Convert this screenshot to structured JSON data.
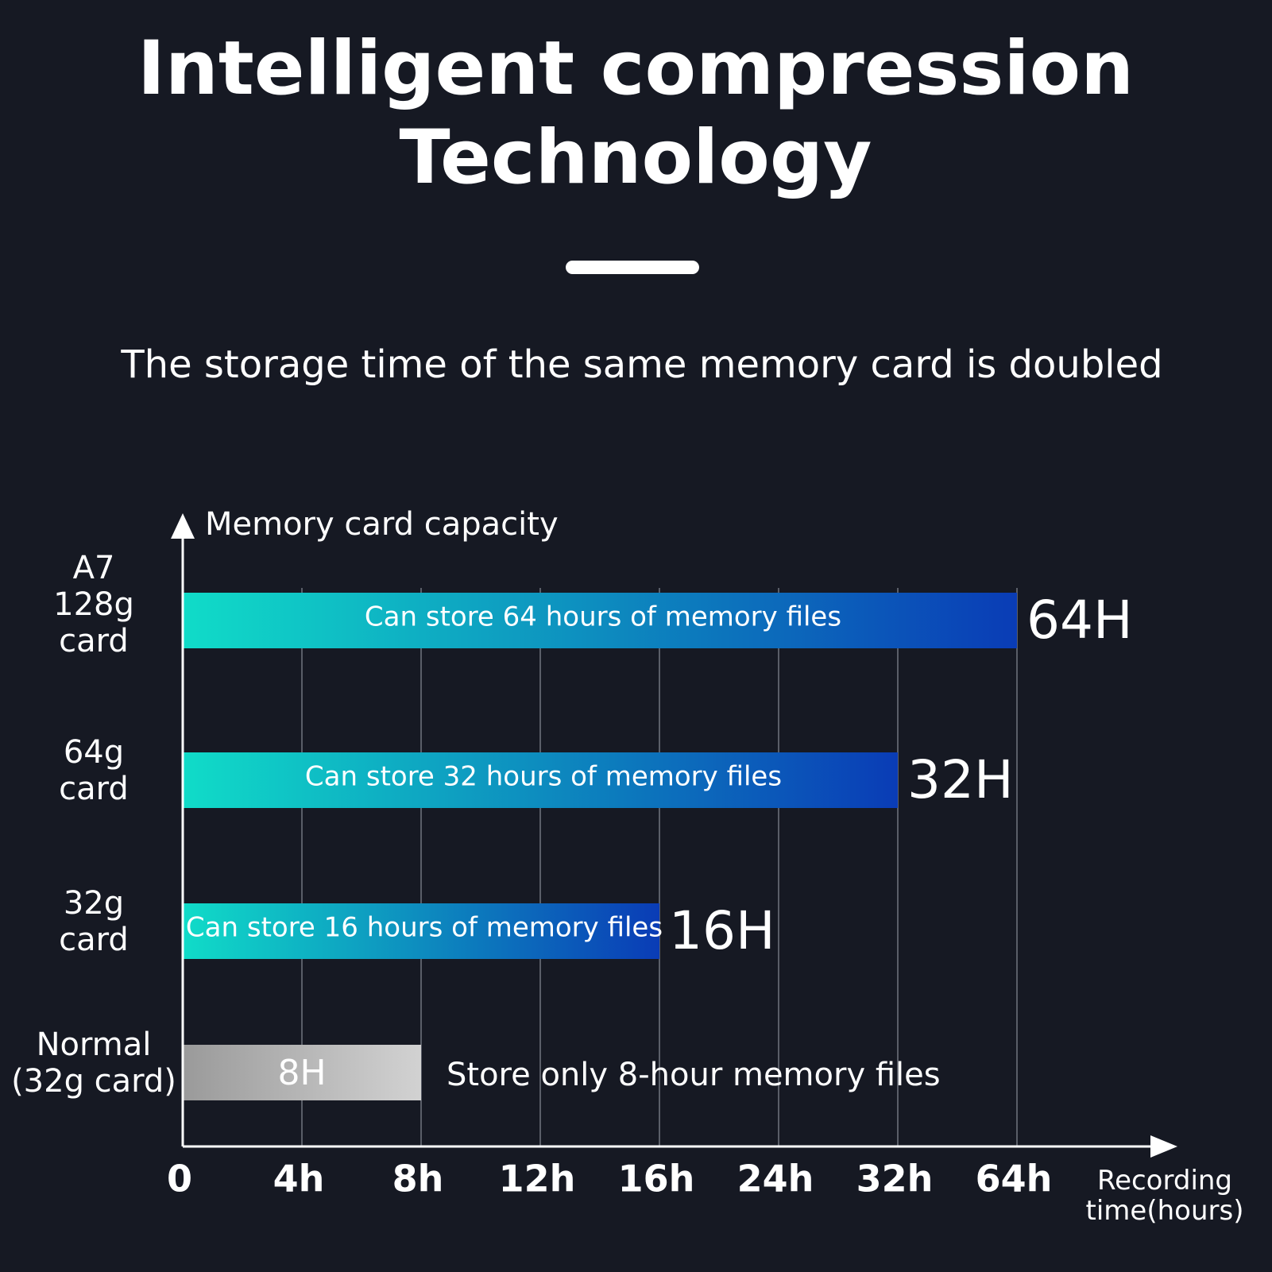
{
  "chart_data": {
    "type": "bar",
    "orientation": "horizontal",
    "title": "Intelligent compression\nTechnology",
    "subtitle": "The storage time of the same memory card is doubled",
    "y_label": "Memory card capacity",
    "x_label": "Recording\ntime(hours)",
    "categories": [
      "A7\n128g\ncard",
      "64g\ncard",
      "32g\ncard",
      "Normal\n(32g card)"
    ],
    "values": [
      64,
      32,
      16,
      8
    ],
    "value_labels": [
      "64H",
      "32H",
      "16H",
      "8H"
    ],
    "value_label_position": [
      "outside",
      "outside",
      "outside",
      "inside"
    ],
    "bar_texts": [
      "Can store 64 hours of memory files",
      "Can store 32 hours of memory files",
      "Can store 16 hours of memory files",
      "Store only 8-hour memory files"
    ],
    "bar_colors": [
      [
        "#10dcc8",
        "#0a3cb6"
      ],
      [
        "#10dcc8",
        "#0a3cb6"
      ],
      [
        "#10dcc8",
        "#0a3cb6"
      ],
      [
        "#9a9a9a",
        "#d2d2d2"
      ]
    ],
    "value_label_colors": [
      "#2fe0e0",
      "#2fe0e0",
      "#2fe0e0",
      "#ffffff"
    ],
    "xlim": [
      0,
      64
    ],
    "xticks": [
      0,
      {
        "value": 4,
        "label": "4h"
      },
      {
        "value": 8,
        "label": "8h"
      },
      {
        "value": 12,
        "label": "12h"
      },
      {
        "value": 16,
        "label": "16h"
      },
      {
        "value": 24,
        "label": "24h"
      },
      {
        "value": 32,
        "label": "32h"
      },
      {
        "value": 64,
        "label": "64h"
      }
    ],
    "grid": true
  }
}
